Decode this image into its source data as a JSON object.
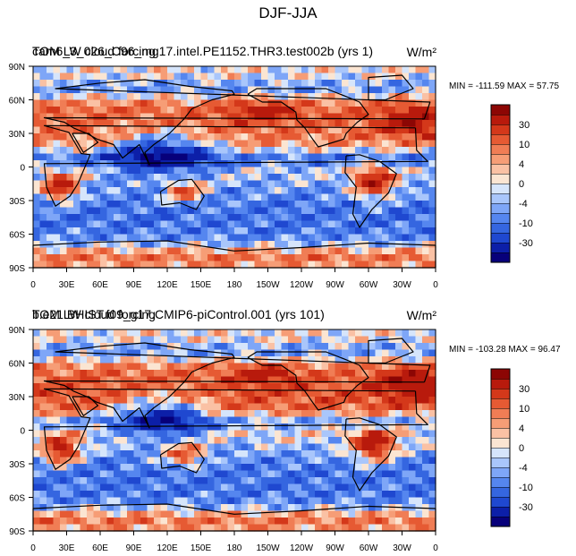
{
  "figure": {
    "title": "DJF-JJA"
  },
  "colorbar": {
    "colors": [
      "#07007a",
      "#0c1fa8",
      "#1f48d0",
      "#3566e0",
      "#5586ef",
      "#7ea6f7",
      "#a9c6fb",
      "#d6e5fb",
      "#fbe5d2",
      "#fac1a4",
      "#f69d76",
      "#f07d55",
      "#e65a33",
      "#d4381a",
      "#b81a0c",
      "#8c0604"
    ],
    "tick_labels": [
      "-30",
      "-10",
      "-4",
      "0",
      "4",
      "10",
      "30"
    ],
    "tick_levels": [
      2,
      4,
      6,
      8,
      10,
      12,
      14
    ]
  },
  "chart_data": [
    {
      "type": "heatmap",
      "title_left": "TOM LW cloud forcing",
      "title_overlap": "cam6_3_026_C96_mg17.intel.PE1152.THR3.test002b (yrs 1)",
      "units": "W/m²",
      "stats": "MIN = -111.59 MAX =  57.75",
      "min": -111.59,
      "max": 57.75,
      "x_tick_labels": [
        "0",
        "30E",
        "60E",
        "90E",
        "120E",
        "150E",
        "180",
        "150W",
        "120W",
        "90W",
        "60W",
        "30W",
        "0"
      ],
      "y_tick_labels": [
        "90N",
        "60N",
        "30N",
        "0",
        "30S",
        "60S",
        "90S"
      ],
      "xlim": [
        0,
        360
      ],
      "ylim": [
        -90,
        90
      ]
    },
    {
      "type": "heatmap",
      "title_left": "TOM LW cloud forcing",
      "title_overlap": "b.e21.BHIST.f09_g17.CMIP6-piControl.001 (yrs 101)",
      "units": "W/m²",
      "stats": "MIN = -103.28 MAX =  96.47",
      "min": -103.28,
      "max": 96.47,
      "x_tick_labels": [
        "0",
        "30E",
        "60E",
        "90E",
        "120E",
        "150E",
        "180",
        "150W",
        "120W",
        "90W",
        "60W",
        "30W",
        "0"
      ],
      "y_tick_labels": [
        "90N",
        "60N",
        "30N",
        "0",
        "30S",
        "60S",
        "90S"
      ],
      "xlim": [
        0,
        360
      ],
      "ylim": [
        -90,
        90
      ]
    }
  ]
}
